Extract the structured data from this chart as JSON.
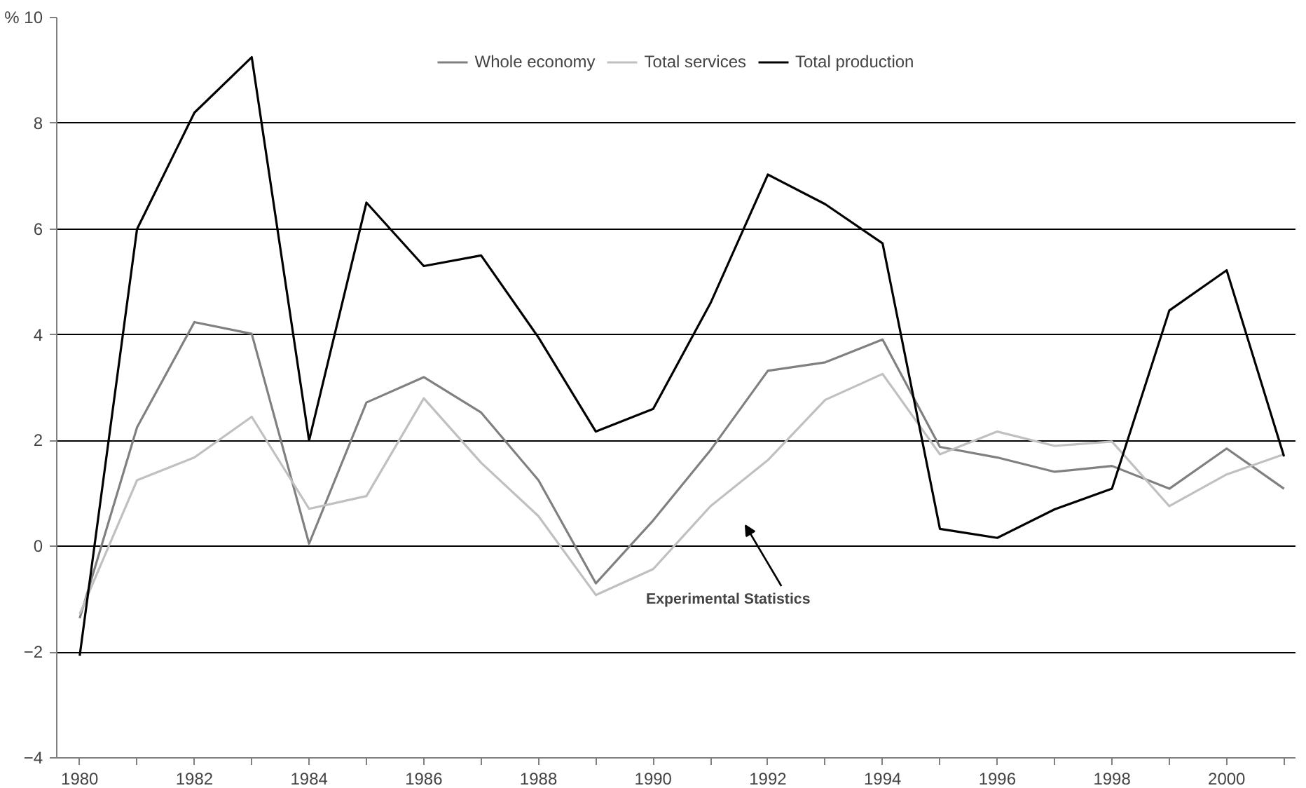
{
  "chart_data": {
    "type": "line",
    "x": [
      1980,
      1981,
      1982,
      1983,
      1984,
      1985,
      1986,
      1987,
      1988,
      1989,
      1990,
      1991,
      1992,
      1993,
      1994,
      1995,
      1996,
      1997,
      1998,
      1999,
      2000,
      2001
    ],
    "series": [
      {
        "name": "Whole economy",
        "color": "#808080",
        "values": [
          -1.36,
          2.25,
          4.24,
          4.02,
          0.05,
          2.72,
          3.2,
          2.53,
          1.25,
          -0.7,
          0.49,
          1.82,
          3.32,
          3.48,
          3.91,
          1.88,
          1.68,
          1.41,
          1.52,
          1.09,
          1.85,
          1.09
        ]
      },
      {
        "name": "Total services",
        "color": "#c0c0c0",
        "values": [
          -1.28,
          1.25,
          1.68,
          2.45,
          0.71,
          0.95,
          2.8,
          1.58,
          0.57,
          -0.92,
          -0.43,
          0.76,
          1.63,
          2.77,
          3.26,
          1.74,
          2.17,
          1.9,
          1.98,
          0.76,
          1.36,
          1.74
        ]
      },
      {
        "name": "Total production",
        "color": "#000000",
        "values": [
          -2.07,
          6.0,
          8.2,
          9.25,
          2.0,
          6.5,
          5.3,
          5.5,
          3.95,
          2.17,
          2.6,
          4.6,
          7.03,
          6.47,
          5.73,
          0.33,
          0.16,
          0.7,
          1.09,
          4.46,
          5.22,
          1.7
        ]
      }
    ],
    "xlim": [
      1979.6,
      2001.2
    ],
    "xticks": [
      1980,
      {
        "value": 1981,
        "label": null
      },
      1982,
      {
        "value": 1983,
        "label": null
      },
      1984,
      {
        "value": 1985,
        "label": null
      },
      1986,
      {
        "value": 1987,
        "label": null
      },
      1988,
      {
        "value": 1989,
        "label": null
      },
      1990,
      {
        "value": 1991,
        "label": null
      },
      1992,
      {
        "value": 1993,
        "label": null
      },
      1994,
      {
        "value": 1995,
        "label": null
      },
      1996,
      {
        "value": 1997,
        "label": null
      },
      1998,
      {
        "value": 1999,
        "label": null
      },
      2000,
      {
        "value": 2001,
        "label": null
      }
    ],
    "ylim": [
      -4,
      10
    ],
    "yticks": [
      -4,
      -2,
      0,
      2,
      4,
      6,
      8,
      {
        "value": 10,
        "label": "% 10"
      }
    ],
    "grid": "y",
    "legend": "top",
    "marker": "none",
    "line_style": "solid",
    "annotations": [
      "Experimental Statistics"
    ]
  }
}
